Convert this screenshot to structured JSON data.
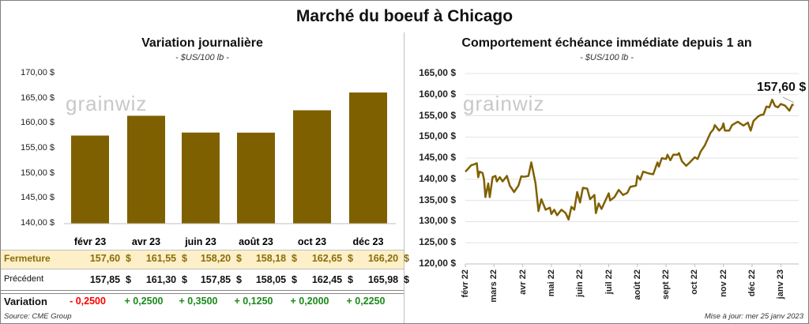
{
  "title": "Marché du boeuf à Chicago",
  "left": {
    "subtitle": "Variation journalière",
    "unit": "- $US/100 lb -"
  },
  "right": {
    "subtitle": "Comportement  échéance immédiate depuis 1 an",
    "unit": "- $US/100 lb -",
    "last_label": "157,60 $"
  },
  "logo": "grainwiz",
  "table": {
    "headers": [
      "févr 23",
      "avr 23",
      "juin 23",
      "août 23",
      "oct 23",
      "déc 23"
    ],
    "rows": [
      {
        "label": "Fermeture",
        "values": [
          "157,60  $",
          "161,55  $",
          "158,20  $",
          "158,18  $",
          "162,65  $",
          "166,20  $"
        ]
      },
      {
        "label": "Précédent",
        "values": [
          "157,85  $",
          "161,30  $",
          "157,85  $",
          "158,05  $",
          "162,45  $",
          "165,98  $"
        ]
      },
      {
        "label": "Variation",
        "values": [
          "- 0,2500",
          "+ 0,2500",
          "+ 0,3500",
          "+ 0,1250",
          "+ 0,2000",
          "+ 0,2250"
        ]
      }
    ]
  },
  "source": "Source: CME Group",
  "updated": "Mise à jour: mer 25 janv 2023",
  "colors": {
    "bar": "#7f6000",
    "highlight": "#fdf0c8",
    "fermeture_text": "#8a6d0b",
    "neg": "#ff0000",
    "pos": "#1a8a1a"
  },
  "chart_data": [
    {
      "type": "bar",
      "title": "Variation journalière",
      "ylabel": "$US/100 lb",
      "ylim": [
        140,
        170
      ],
      "yticks": [
        "140,00 $",
        "145,00 $",
        "150,00 $",
        "155,00 $",
        "160,00 $",
        "165,00 $",
        "170,00 $"
      ],
      "categories": [
        "févr 23",
        "avr 23",
        "juin 23",
        "août 23",
        "oct 23",
        "déc 23"
      ],
      "values": [
        157.6,
        161.55,
        158.2,
        158.18,
        162.65,
        166.2
      ]
    },
    {
      "type": "line",
      "title": "Comportement  échéance immédiate depuis 1 an",
      "ylim": [
        120,
        165
      ],
      "yticks": [
        "120,00 $",
        "125,00 $",
        "130,00 $",
        "135,00 $",
        "140,00 $",
        "145,00 $",
        "150,00 $",
        "155,00 $",
        "160,00 $",
        "165,00 $"
      ],
      "xticks": [
        "févr 22",
        "mars 22",
        "avr 22",
        "mai 22",
        "juin 22",
        "juil 22",
        "août 22",
        "sept 22",
        "oct 22",
        "nov 22",
        "déc 22",
        "janv 23"
      ],
      "points": [
        [
          0,
          141.8
        ],
        [
          0.1,
          142.5
        ],
        [
          0.2,
          143.3
        ],
        [
          0.3,
          143.5
        ],
        [
          0.4,
          143.8
        ],
        [
          0.45,
          140.5
        ],
        [
          0.5,
          141.8
        ],
        [
          0.6,
          141.5
        ],
        [
          0.65,
          140
        ],
        [
          0.7,
          135.8
        ],
        [
          0.8,
          139
        ],
        [
          0.85,
          135.8
        ],
        [
          0.95,
          140.5
        ],
        [
          1.05,
          140.8
        ],
        [
          1.1,
          139.5
        ],
        [
          1.2,
          140.5
        ],
        [
          1.3,
          139.5
        ],
        [
          1.45,
          140.8
        ],
        [
          1.55,
          138.5
        ],
        [
          1.7,
          137
        ],
        [
          1.85,
          138.5
        ],
        [
          1.95,
          140.7
        ],
        [
          2.05,
          140.6
        ],
        [
          2.2,
          140.8
        ],
        [
          2.3,
          144
        ],
        [
          2.45,
          139
        ],
        [
          2.55,
          132.5
        ],
        [
          2.65,
          135.3
        ],
        [
          2.8,
          132.8
        ],
        [
          2.95,
          133.3
        ],
        [
          3.0,
          131.8
        ],
        [
          3.1,
          132.8
        ],
        [
          3.2,
          131.5
        ],
        [
          3.35,
          132.8
        ],
        [
          3.5,
          132
        ],
        [
          3.6,
          130.5
        ],
        [
          3.7,
          133.5
        ],
        [
          3.8,
          132.8
        ],
        [
          3.9,
          137
        ],
        [
          4.0,
          134.5
        ],
        [
          4.1,
          138
        ],
        [
          4.25,
          137.8
        ],
        [
          4.35,
          135.3
        ],
        [
          4.5,
          136.3
        ],
        [
          4.55,
          132
        ],
        [
          4.65,
          134.3
        ],
        [
          4.75,
          133
        ],
        [
          4.85,
          134.5
        ],
        [
          5.0,
          136.7
        ],
        [
          5.05,
          135
        ],
        [
          5.2,
          135.8
        ],
        [
          5.35,
          137.5
        ],
        [
          5.5,
          136.3
        ],
        [
          5.65,
          136.8
        ],
        [
          5.75,
          138.2
        ],
        [
          5.95,
          138.5
        ],
        [
          6.0,
          140.8
        ],
        [
          6.1,
          139.9
        ],
        [
          6.2,
          141.8
        ],
        [
          6.35,
          141.5
        ],
        [
          6.45,
          141.3
        ],
        [
          6.55,
          141.2
        ],
        [
          6.7,
          144
        ],
        [
          6.75,
          143
        ],
        [
          6.85,
          145
        ],
        [
          7.0,
          144.8
        ],
        [
          7.05,
          145.8
        ],
        [
          7.15,
          144.5
        ],
        [
          7.25,
          145.8
        ],
        [
          7.4,
          145.8
        ],
        [
          7.45,
          146.2
        ],
        [
          7.55,
          144.3
        ],
        [
          7.7,
          143.2
        ],
        [
          7.8,
          143.8
        ],
        [
          8.0,
          145.2
        ],
        [
          8.1,
          144.8
        ],
        [
          8.2,
          146.5
        ],
        [
          8.35,
          148
        ],
        [
          8.55,
          151
        ],
        [
          8.65,
          151.8
        ],
        [
          8.7,
          152.8
        ],
        [
          8.85,
          151.5
        ],
        [
          8.95,
          152.2
        ],
        [
          9.0,
          153.2
        ],
        [
          9.05,
          151.5
        ],
        [
          9.2,
          151.5
        ],
        [
          9.3,
          152.8
        ],
        [
          9.5,
          153.6
        ],
        [
          9.7,
          152.7
        ],
        [
          9.85,
          153.4
        ],
        [
          9.95,
          151.5
        ],
        [
          10.05,
          153.8
        ],
        [
          10.2,
          154.8
        ],
        [
          10.3,
          155.2
        ],
        [
          10.4,
          155.3
        ],
        [
          10.5,
          157.2
        ],
        [
          10.6,
          157
        ],
        [
          10.7,
          158.8
        ],
        [
          10.8,
          157.3
        ],
        [
          10.9,
          157
        ],
        [
          11.0,
          157.8
        ],
        [
          11.15,
          157.4
        ],
        [
          11.3,
          156.2
        ],
        [
          11.4,
          157.6
        ],
        [
          11.45,
          157.6
        ]
      ]
    }
  ]
}
